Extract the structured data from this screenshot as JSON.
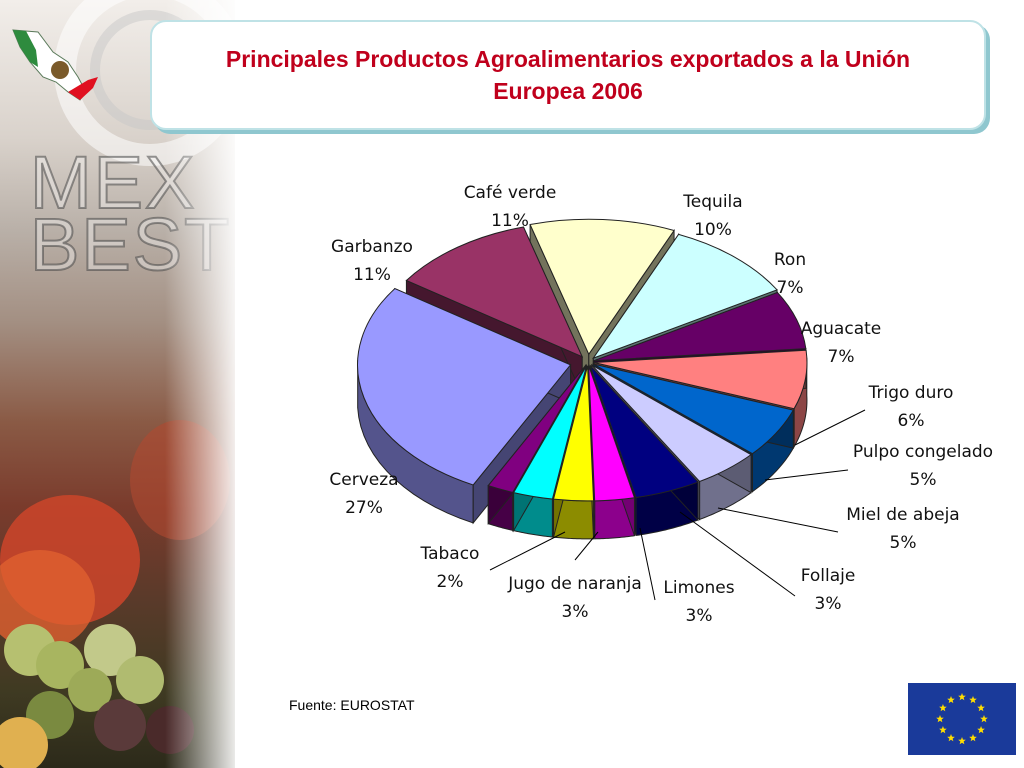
{
  "title": "Principales Productos Agroalimentarios exportados a la Unión Europea 2006",
  "source": "Fuente: EUROSTAT",
  "logo_text": [
    "MEX",
    "BEST"
  ],
  "chart_data": {
    "type": "pie",
    "title": "Principales Productos Agroalimentarios exportados a la Unión Europea 2006",
    "slices": [
      {
        "label": "Café verde",
        "value": 11,
        "display": "11%",
        "color": "#ffffcc"
      },
      {
        "label": "Tequila",
        "value": 10,
        "display": "10%",
        "color": "#ccffff"
      },
      {
        "label": "Ron",
        "value": 7,
        "display": "7%",
        "color": "#660066"
      },
      {
        "label": "Aguacate",
        "value": 7,
        "display": "7%",
        "color": "#ff8080"
      },
      {
        "label": "Trigo duro",
        "value": 6,
        "display": "6%",
        "color": "#0066cc"
      },
      {
        "label": "Pulpo congelado",
        "value": 5,
        "display": "5%",
        "color": "#ccccff"
      },
      {
        "label": "Miel de abeja",
        "value": 5,
        "display": "5%",
        "color": "#000080"
      },
      {
        "label": "Follaje",
        "value": 3,
        "display": "3%",
        "color": "#ff00ff"
      },
      {
        "label": "Limones",
        "value": 3,
        "display": "3%",
        "color": "#ffff00"
      },
      {
        "label": "Jugo de naranja",
        "value": 3,
        "display": "3%",
        "color": "#00ffff"
      },
      {
        "label": "Tabaco",
        "value": 2,
        "display": "2%",
        "color": "#800080"
      },
      {
        "label": "Cerveza",
        "value": 27,
        "display": "27%",
        "color": "#9999ff"
      },
      {
        "label": "Garbanzo",
        "value": 11,
        "display": "11%",
        "color": "#993366"
      }
    ]
  }
}
